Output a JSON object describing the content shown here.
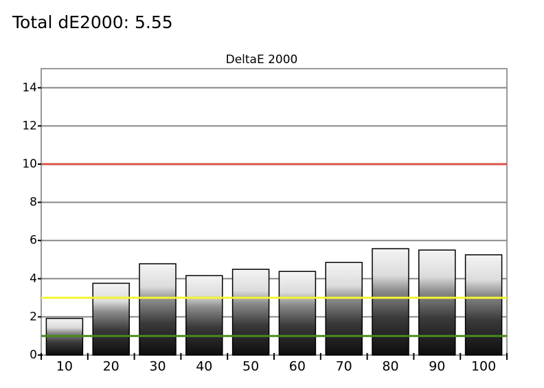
{
  "title": "Total dE2000: 5.55",
  "chart_data": {
    "type": "bar",
    "title": "DeltaE 2000",
    "categories": [
      "10",
      "20",
      "30",
      "40",
      "50",
      "60",
      "70",
      "80",
      "90",
      "100"
    ],
    "values": [
      1.92,
      3.76,
      4.78,
      4.16,
      4.49,
      4.38,
      4.85,
      5.57,
      5.5,
      5.25
    ],
    "ylim": [
      0,
      15
    ],
    "yticks": [
      0,
      2,
      4,
      6,
      8,
      10,
      12,
      14
    ],
    "grid": true,
    "reference_lines": [
      {
        "value": 10,
        "color": "#d9534a"
      },
      {
        "value": 3,
        "color": "#f5f532"
      },
      {
        "value": 1,
        "color": "#4a8a1a"
      }
    ]
  }
}
